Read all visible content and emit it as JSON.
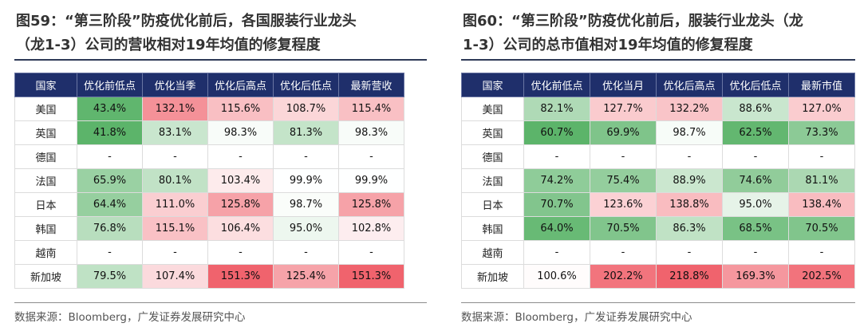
{
  "panels": [
    {
      "title_line1": "图59：“第三阶段”防疫优化前后，各国服装行业龙头",
      "title_line2": "（龙1-3）公司的营收相对19年均值的修复程度",
      "headers": [
        "国家",
        "优化前低点",
        "优化当季",
        "优化后高点",
        "优化后低点",
        "最新营收"
      ],
      "rows": [
        {
          "country": "美国",
          "cells": [
            "43.4%",
            "132.1%",
            "115.6%",
            "108.7%",
            "115.4%"
          ]
        },
        {
          "country": "英国",
          "cells": [
            "41.8%",
            "83.1%",
            "98.3%",
            "81.3%",
            "98.3%"
          ]
        },
        {
          "country": "德国",
          "cells": [
            "-",
            "-",
            "-",
            "-",
            "-"
          ]
        },
        {
          "country": "法国",
          "cells": [
            "65.9%",
            "80.1%",
            "103.4%",
            "99.9%",
            "99.9%"
          ]
        },
        {
          "country": "日本",
          "cells": [
            "64.4%",
            "111.0%",
            "125.8%",
            "98.7%",
            "125.8%"
          ]
        },
        {
          "country": "韩国",
          "cells": [
            "76.8%",
            "115.1%",
            "106.4%",
            "95.0%",
            "102.8%"
          ]
        },
        {
          "country": "越南",
          "cells": [
            "-",
            "-",
            "-",
            "-",
            "-"
          ]
        },
        {
          "country": "新加坡",
          "cells": [
            "79.5%",
            "107.4%",
            "151.3%",
            "125.4%",
            "151.3%"
          ]
        }
      ],
      "source": "数据来源：Bloomberg，广发证券发展研究中心"
    },
    {
      "title_line1": "图60：“第三阶段”防疫优化前后，服装行业龙头（龙",
      "title_line2": "1-3）公司的总市值相对19年均值的修复程度",
      "headers": [
        "国家",
        "优化前低点",
        "优化当月",
        "优化后高点",
        "优化后低点",
        "最新市值"
      ],
      "rows": [
        {
          "country": "美国",
          "cells": [
            "82.1%",
            "127.7%",
            "132.2%",
            "88.6%",
            "127.0%"
          ]
        },
        {
          "country": "英国",
          "cells": [
            "60.7%",
            "69.9%",
            "98.7%",
            "62.5%",
            "73.3%"
          ]
        },
        {
          "country": "德国",
          "cells": [
            "-",
            "-",
            "-",
            "-",
            "-"
          ]
        },
        {
          "country": "法国",
          "cells": [
            "74.2%",
            "75.4%",
            "88.9%",
            "74.6%",
            "81.1%"
          ]
        },
        {
          "country": "日本",
          "cells": [
            "70.7%",
            "123.6%",
            "138.8%",
            "95.0%",
            "138.4%"
          ]
        },
        {
          "country": "韩国",
          "cells": [
            "64.0%",
            "70.5%",
            "86.3%",
            "68.5%",
            "70.5%"
          ]
        },
        {
          "country": "越南",
          "cells": [
            "-",
            "-",
            "-",
            "-",
            "-"
          ]
        },
        {
          "country": "新加坡",
          "cells": [
            "100.6%",
            "202.2%",
            "218.8%",
            "169.3%",
            "202.5%"
          ]
        }
      ],
      "source": "数据来源：Bloomberg，广发证券发展研究中心"
    }
  ],
  "colors": {
    "header_bg": "#1f2f6b",
    "low_green": "#5cb46a",
    "mid_white": "#ffffff",
    "high_red": "#f0636d"
  }
}
